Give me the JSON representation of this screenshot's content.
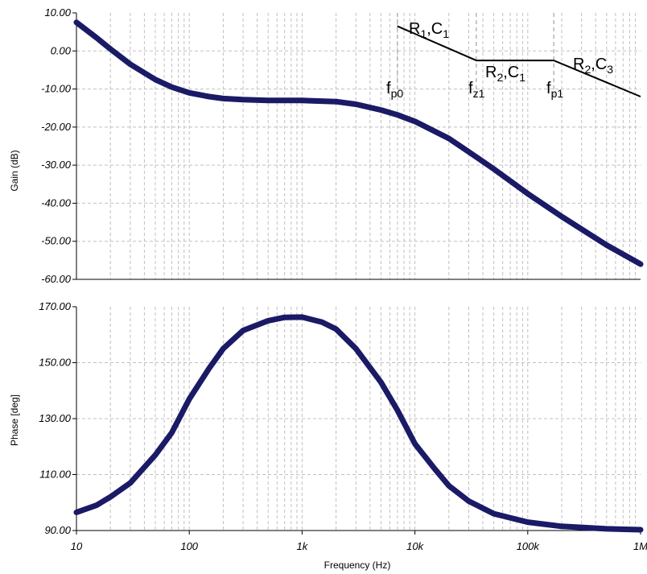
{
  "chart_data": [
    {
      "type": "line",
      "xlabel": "",
      "ylabel": "Gain (dB)",
      "xscale": "log",
      "xlim": [
        10,
        1000000
      ],
      "ylim": [
        -60,
        10
      ],
      "yticks": [
        "10.00",
        "0.00",
        "-10.00",
        "-20.00",
        "-30.00",
        "-40.00",
        "-50.00",
        "-60.00"
      ],
      "ytick_values": [
        10,
        0,
        -10,
        -20,
        -30,
        -40,
        -50,
        -60
      ],
      "grid": true,
      "color": "#1a1a66",
      "series": [
        {
          "x": [
            10,
            15,
            20,
            30,
            50,
            70,
            100,
            150,
            200,
            300,
            500,
            700,
            1000,
            2000,
            3000,
            5000,
            7000,
            10000,
            20000,
            30000,
            50000,
            100000,
            200000,
            500000,
            1000000
          ],
          "values": [
            7.5,
            3.5,
            0.5,
            -3.5,
            -7.5,
            -9.5,
            -11,
            -12,
            -12.5,
            -12.8,
            -13,
            -13,
            -13,
            -13.3,
            -14,
            -15.5,
            -16.8,
            -18.5,
            -23,
            -26.5,
            -31,
            -37.5,
            -43.5,
            -51,
            -56
          ]
        }
      ],
      "annotations": [
        {
          "name": "r1c1",
          "text": "R",
          "sub": "1",
          "text2": ",C",
          "sub2": "1"
        },
        {
          "name": "r2c1",
          "text": "R",
          "sub": "2",
          "text2": ",C",
          "sub2": "1"
        },
        {
          "name": "r2c3",
          "text": "R",
          "sub": "2",
          "text2": ",C",
          "sub2": "3"
        },
        {
          "name": "fp0",
          "text": "f",
          "sub": "p0"
        },
        {
          "name": "fz1",
          "text": "f",
          "sub": "z1"
        },
        {
          "name": "fp1",
          "text": "f",
          "sub": "p1"
        }
      ],
      "asymptote": {
        "x": [
          7000,
          35000,
          170000,
          1000000
        ],
        "y": [
          6.5,
          -2.5,
          -2.5,
          -12
        ]
      },
      "marker_lines_x": [
        7000,
        35000,
        170000
      ]
    },
    {
      "type": "line",
      "xlabel": "Frequency (Hz)",
      "ylabel": "Phase [deg]",
      "xscale": "log",
      "xlim": [
        10,
        1000000
      ],
      "ylim": [
        90,
        170
      ],
      "yticks": [
        "170.00",
        "150.00",
        "130.00",
        "110.00",
        "90.00"
      ],
      "ytick_values": [
        170,
        150,
        130,
        110,
        90
      ],
      "xticks": [
        "10",
        "100",
        "1k",
        "10k",
        "100k",
        "1M"
      ],
      "xtick_values": [
        10,
        100,
        1000,
        10000,
        100000,
        1000000
      ],
      "grid": true,
      "color": "#1a1a66",
      "series": [
        {
          "x": [
            10,
            15,
            20,
            30,
            50,
            70,
            100,
            150,
            200,
            300,
            500,
            700,
            1000,
            1500,
            2000,
            3000,
            5000,
            7000,
            10000,
            15000,
            20000,
            30000,
            50000,
            100000,
            200000,
            500000,
            1000000
          ],
          "values": [
            96.5,
            99,
            102,
            107,
            117,
            125,
            137,
            148,
            155,
            161.5,
            165,
            166.2,
            166.3,
            164.5,
            162,
            155,
            143,
            133,
            121,
            112,
            106,
            100.5,
            96,
            93,
            91.5,
            90.6,
            90.3
          ]
        }
      ]
    }
  ]
}
